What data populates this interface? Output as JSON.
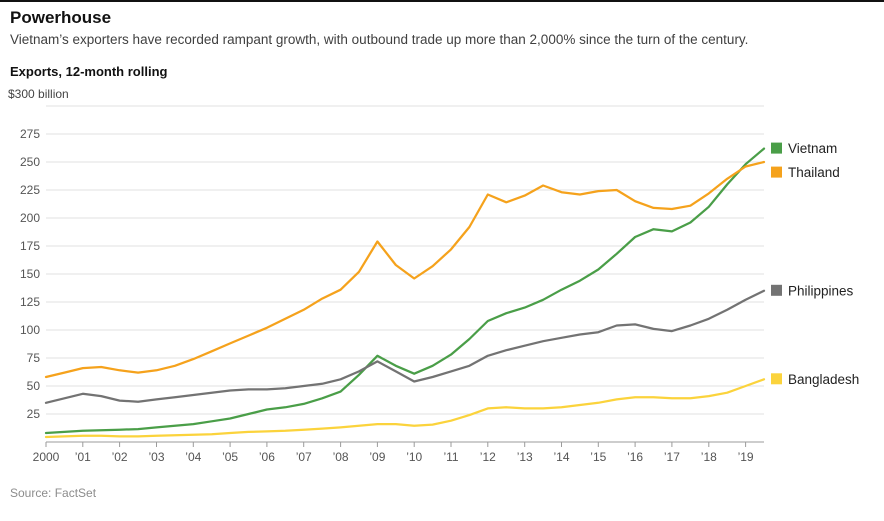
{
  "header": {
    "title": "Powerhouse",
    "subtitle": "Vietnam’s exporters have recorded rampant growth, with outbound trade up more than 2,000% since the turn of the century.",
    "chart_label": "Exports, 12-month rolling"
  },
  "footer": {
    "source": "Source: FactSet"
  },
  "chart_data": {
    "type": "line",
    "title": "Exports, 12-month rolling",
    "xlabel": "",
    "ylabel": "$ billion",
    "y_top_label": "$300 billion",
    "ylim": [
      0,
      300
    ],
    "ytick_step": 25,
    "grid": true,
    "legend_position": "right",
    "x_range": [
      2000,
      2019.5
    ],
    "x_start": 2000,
    "x_step": 0.5,
    "xtick_labels": [
      "2000",
      "’01",
      "’02",
      "’03",
      "’04",
      "’05",
      "’06",
      "’07",
      "’08",
      "’09",
      "’10",
      "’11",
      "’12",
      "’13",
      "’14",
      "’15",
      "’16",
      "’17",
      "’18",
      "’19"
    ],
    "series": [
      {
        "name": "Vietnam",
        "color": "#4a9e48",
        "values": [
          8,
          9,
          10,
          10.5,
          11,
          11.5,
          13,
          14.5,
          16,
          18.5,
          21,
          25,
          29,
          31,
          34,
          39,
          45,
          60,
          77,
          68,
          61,
          68,
          78,
          92,
          108,
          115,
          120,
          127,
          136,
          144,
          154,
          168,
          183,
          190,
          188,
          196,
          210,
          230,
          248,
          262
        ]
      },
      {
        "name": "Thailand",
        "color": "#f5a21c",
        "values": [
          58,
          62,
          66,
          67,
          64,
          62,
          64,
          68,
          74,
          81,
          88,
          95,
          102,
          110,
          118,
          128,
          136,
          152,
          179,
          158,
          146,
          157,
          172,
          192,
          221,
          214,
          220,
          229,
          223,
          221,
          224,
          225,
          215,
          209,
          208,
          211,
          222,
          235,
          246,
          250
        ]
      },
      {
        "name": "Philippines",
        "color": "#737373",
        "values": [
          35,
          39,
          43,
          41,
          37,
          36,
          38,
          40,
          42,
          44,
          46,
          47,
          47,
          48,
          50,
          52,
          56,
          63,
          72,
          63,
          54,
          58,
          63,
          68,
          77,
          82,
          86,
          90,
          93,
          96,
          98,
          104,
          105,
          101,
          99,
          104,
          110,
          118,
          127,
          135
        ]
      },
      {
        "name": "Bangladesh",
        "color": "#fbd33c",
        "values": [
          4.5,
          5,
          5.5,
          5.5,
          5,
          5,
          5.5,
          6,
          6.5,
          7,
          8,
          9,
          9.5,
          10,
          11,
          12,
          13,
          14.5,
          16,
          16,
          14.5,
          15.5,
          19,
          24,
          30,
          31,
          30,
          30,
          31,
          33,
          35,
          38,
          40,
          40,
          39,
          39,
          41,
          44,
          50,
          56
        ]
      }
    ]
  }
}
